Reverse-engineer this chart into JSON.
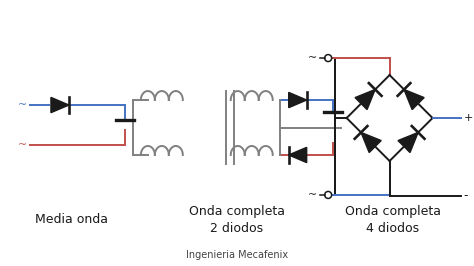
{
  "footer": "Ingenieria Mecafenix",
  "labels": [
    "Media onda",
    "Onda completa\n2 diodos",
    "Onda completa\n4 diodos"
  ],
  "blue": "#4472C4",
  "red": "#C0504D",
  "black": "#1a1a1a",
  "gray": "#808080",
  "bg": "#ffffff",
  "lw": 1.4
}
